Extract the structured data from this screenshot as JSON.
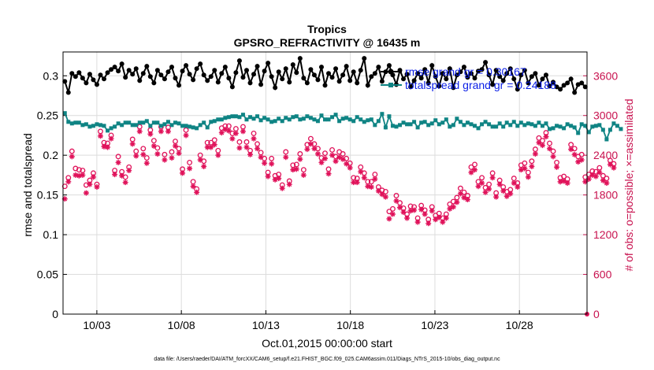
{
  "chart_data": {
    "type": "line",
    "title": "Tropics",
    "subtitle": "GPSRO_REFRACTIVITY @ 16435 m",
    "xlabel": "Oct.01,2015 00:00:00 start",
    "ylabel": "rmse and totalspread",
    "y2label": "# of obs: o=possible; ×=assimilated",
    "footnote": "data file: /Users/raeder/DAI/ATM_forcXX/CAM6_setup/f.e21.FHIST_BGC.f09_025.CAM6assim.011/Diags_NTrS_2015-10/obs_diag_output.nc",
    "xlim": [
      1,
      32
    ],
    "ylim": [
      0,
      0.33
    ],
    "y2lim": [
      0,
      3960
    ],
    "xticks": [
      "10/03",
      "10/08",
      "10/13",
      "10/18",
      "10/23",
      "10/28"
    ],
    "yticks": [
      "0",
      "0.05",
      "0.1",
      "0.15",
      "0.2",
      "0.25",
      "0.3"
    ],
    "y2ticks": [
      "0",
      "600",
      "1200",
      "1800",
      "2400",
      "3000",
      "3600"
    ],
    "grid": true,
    "legend": {
      "position": "top-right",
      "rmse": "rmse grand gr = 0.30167",
      "spread": "totalspread grand gr = 0.24188"
    },
    "colors": {
      "rmse": "#000000",
      "spread": "#0f8484",
      "obs": "#e0125a",
      "legend_text": "#0a1ee6",
      "right_axis": "#c8124f"
    },
    "series": [
      {
        "name": "rmse",
        "values": [
          0.293,
          0.279,
          0.303,
          0.299,
          0.304,
          0.297,
          0.291,
          0.302,
          0.295,
          0.289,
          0.301,
          0.296,
          0.304,
          0.308,
          0.311,
          0.306,
          0.315,
          0.298,
          0.307,
          0.302,
          0.309,
          0.294,
          0.303,
          0.312,
          0.299,
          0.291,
          0.307,
          0.301,
          0.296,
          0.305,
          0.311,
          0.297,
          0.288,
          0.306,
          0.313,
          0.302,
          0.295,
          0.309,
          0.315,
          0.301,
          0.294,
          0.299,
          0.307,
          0.292,
          0.303,
          0.311,
          0.297,
          0.286,
          0.304,
          0.319,
          0.298,
          0.307,
          0.291,
          0.302,
          0.312,
          0.289,
          0.306,
          0.316,
          0.299,
          0.285,
          0.305,
          0.296,
          0.309,
          0.292,
          0.314,
          0.304,
          0.322,
          0.297,
          0.291,
          0.308,
          0.301,
          0.295,
          0.311,
          0.288,
          0.303,
          0.298,
          0.309,
          0.293,
          0.301,
          0.312,
          0.294,
          0.305,
          0.291,
          0.307,
          0.322,
          0.288,
          0.299,
          0.303,
          0.311,
          0.293,
          0.305,
          0.313,
          0.301,
          0.289,
          0.307,
          0.296,
          0.302,
          0.286,
          0.294,
          0.303,
          0.297,
          0.308,
          0.291,
          0.313,
          0.299,
          0.287,
          0.303,
          0.296,
          0.309,
          0.285,
          0.301,
          0.305,
          0.311,
          0.298,
          0.303,
          0.297,
          0.306,
          0.308,
          0.317,
          0.301,
          0.289,
          0.307,
          0.299,
          0.294,
          0.303,
          0.309,
          0.296,
          0.283,
          0.301,
          0.307,
          0.291,
          0.299,
          0.303,
          0.288,
          0.296,
          0.301,
          0.287,
          0.292,
          0.286,
          0.283,
          0.288,
          0.291,
          0.296,
          0.279,
          0.289,
          0.291,
          0.286
        ]
      },
      {
        "name": "totalspread",
        "values": [
          0.253,
          0.242,
          0.24,
          0.241,
          0.241,
          0.238,
          0.239,
          0.236,
          0.237,
          0.239,
          0.238,
          0.237,
          0.231,
          0.234,
          0.236,
          0.24,
          0.238,
          0.241,
          0.241,
          0.238,
          0.238,
          0.241,
          0.241,
          0.243,
          0.237,
          0.241,
          0.241,
          0.237,
          0.239,
          0.242,
          0.238,
          0.241,
          0.24,
          0.237,
          0.237,
          0.236,
          0.235,
          0.234,
          0.238,
          0.241,
          0.235,
          0.242,
          0.243,
          0.245,
          0.245,
          0.247,
          0.248,
          0.249,
          0.249,
          0.248,
          0.251,
          0.245,
          0.248,
          0.246,
          0.249,
          0.244,
          0.247,
          0.245,
          0.242,
          0.243,
          0.246,
          0.243,
          0.247,
          0.245,
          0.248,
          0.249,
          0.245,
          0.246,
          0.249,
          0.247,
          0.245,
          0.243,
          0.25,
          0.245,
          0.245,
          0.248,
          0.251,
          0.243,
          0.246,
          0.247,
          0.245,
          0.243,
          0.248,
          0.245,
          0.242,
          0.244,
          0.245,
          0.238,
          0.243,
          0.252,
          0.235,
          0.249,
          0.237,
          0.236,
          0.238,
          0.241,
          0.239,
          0.239,
          0.242,
          0.235,
          0.241,
          0.242,
          0.238,
          0.24,
          0.244,
          0.239,
          0.241,
          0.245,
          0.236,
          0.238,
          0.246,
          0.242,
          0.238,
          0.241,
          0.239,
          0.237,
          0.234,
          0.239,
          0.242,
          0.239,
          0.236,
          0.236,
          0.24,
          0.236,
          0.241,
          0.238,
          0.242,
          0.237,
          0.241,
          0.238,
          0.24,
          0.239,
          0.237,
          0.241,
          0.237,
          0.24,
          0.233,
          0.234,
          0.237,
          0.236,
          0.234,
          0.239,
          0.237,
          0.235,
          0.228,
          0.239,
          0.237,
          0.229,
          0.236,
          0.237,
          0.238,
          0.232,
          0.22,
          0.232,
          0.24,
          0.237,
          0.233
        ]
      },
      {
        "name": "obs_possible",
        "values": [
          1930,
          2060,
          2460,
          2200,
          2180,
          2170,
          1950,
          2020,
          2130,
          1960,
          2760,
          2590,
          2580,
          2700,
          2170,
          2380,
          2150,
          2070,
          2220,
          2640,
          2460,
          2830,
          2500,
          2360,
          2780,
          2620,
          2510,
          2830,
          2410,
          2820,
          2450,
          2610,
          2500,
          2190,
          2780,
          2290,
          2000,
          1890,
          2400,
          2310,
          2590,
          2590,
          2630,
          2470,
          2810,
          2840,
          2840,
          2730,
          2800,
          2600,
          2830,
          2600,
          2470,
          2730,
          2570,
          2440,
          2350,
          2140,
          2350,
          2090,
          2110,
          1950,
          2450,
          2010,
          2250,
          2260,
          2420,
          2180,
          2560,
          2650,
          2570,
          2500,
          2360,
          2430,
          2190,
          2480,
          2380,
          2450,
          2420,
          2350,
          2280,
          2060,
          2050,
          2220,
          2130,
          2000,
          2000,
          2110,
          1920,
          1870,
          1850,
          1550,
          1590,
          1790,
          1680,
          1600,
          1510,
          1630,
          1620,
          1450,
          1640,
          1570,
          1430,
          1620,
          1490,
          1520,
          1450,
          1510,
          1660,
          1700,
          1760,
          1900,
          1840,
          1790,
          2220,
          2260,
          2000,
          2060,
          1910,
          1960,
          2130,
          1830,
          2020,
          1920,
          1850,
          1880,
          2050,
          1980,
          2250,
          2280,
          2140,
          2310,
          2490,
          2660,
          2620,
          2740,
          2580,
          2460,
          2290,
          2060,
          2080,
          2040,
          2560,
          2500,
          2380,
          2410,
          2070,
          2110,
          2160,
          2150,
          2210,
          2090,
          2050,
          2320,
          2270
        ]
      },
      {
        "name": "obs_assimilated",
        "values": [
          1740,
          2000,
          2380,
          2100,
          2090,
          2100,
          1830,
          1960,
          2070,
          1920,
          2690,
          2530,
          2520,
          2650,
          2110,
          2290,
          2090,
          1990,
          2170,
          2570,
          2390,
          2760,
          2410,
          2280,
          2720,
          2540,
          2420,
          2760,
          2330,
          2760,
          2360,
          2540,
          2430,
          2130,
          2700,
          2200,
          1930,
          1840,
          2330,
          2230,
          2520,
          2520,
          2560,
          2400,
          2740,
          2790,
          2770,
          2650,
          2730,
          2510,
          2760,
          2520,
          2410,
          2650,
          2500,
          2370,
          2280,
          2080,
          2270,
          2030,
          2050,
          1900,
          2370,
          1960,
          2180,
          2190,
          2340,
          2100,
          2490,
          2570,
          2500,
          2420,
          2290,
          2350,
          2120,
          2400,
          2310,
          2370,
          2340,
          2270,
          2210,
          1990,
          1990,
          2150,
          2060,
          1930,
          1920,
          2040,
          1860,
          1810,
          1770,
          1440,
          1510,
          1710,
          1610,
          1540,
          1450,
          1560,
          1570,
          1390,
          1580,
          1510,
          1370,
          1560,
          1430,
          1460,
          1390,
          1450,
          1590,
          1620,
          1690,
          1820,
          1760,
          1730,
          2140,
          2180,
          1930,
          1980,
          1840,
          1890,
          2060,
          1770,
          1960,
          1860,
          1780,
          1820,
          1980,
          1920,
          2180,
          2200,
          2070,
          2230,
          2420,
          2590,
          2550,
          2680,
          2500,
          2380,
          2220,
          2000,
          2010,
          1980,
          2490,
          2410,
          2300,
          2330,
          2000,
          2040,
          2100,
          2080,
          2140,
          2020,
          1980,
          2260,
          2210
        ]
      }
    ]
  }
}
